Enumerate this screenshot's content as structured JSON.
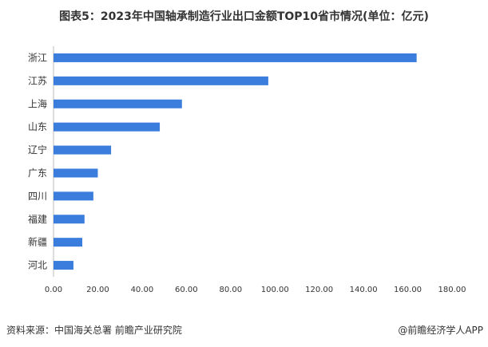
{
  "chart_data": {
    "type": "bar",
    "orientation": "horizontal",
    "title": "图表5：2023年中国轴承制造行业出口金额TOP10省市情况(单位：亿元)",
    "categories": [
      "浙江",
      "江苏",
      "上海",
      "山东",
      "辽宁",
      "广东",
      "四川",
      "福建",
      "新疆",
      "河北"
    ],
    "values": [
      164,
      97,
      58,
      48,
      26,
      20,
      18,
      14,
      13,
      9
    ],
    "xlim": [
      0,
      180
    ],
    "xticks": [
      "0.00",
      "20.00",
      "40.00",
      "60.00",
      "80.00",
      "100.00",
      "120.00",
      "140.00",
      "160.00",
      "180.00"
    ],
    "grid": false,
    "bar_color": "#3A7DDD"
  },
  "footer": {
    "source": "资料来源：中国海关总署 前瞻产业研究院",
    "brand": "@前瞻经济学人APP"
  }
}
